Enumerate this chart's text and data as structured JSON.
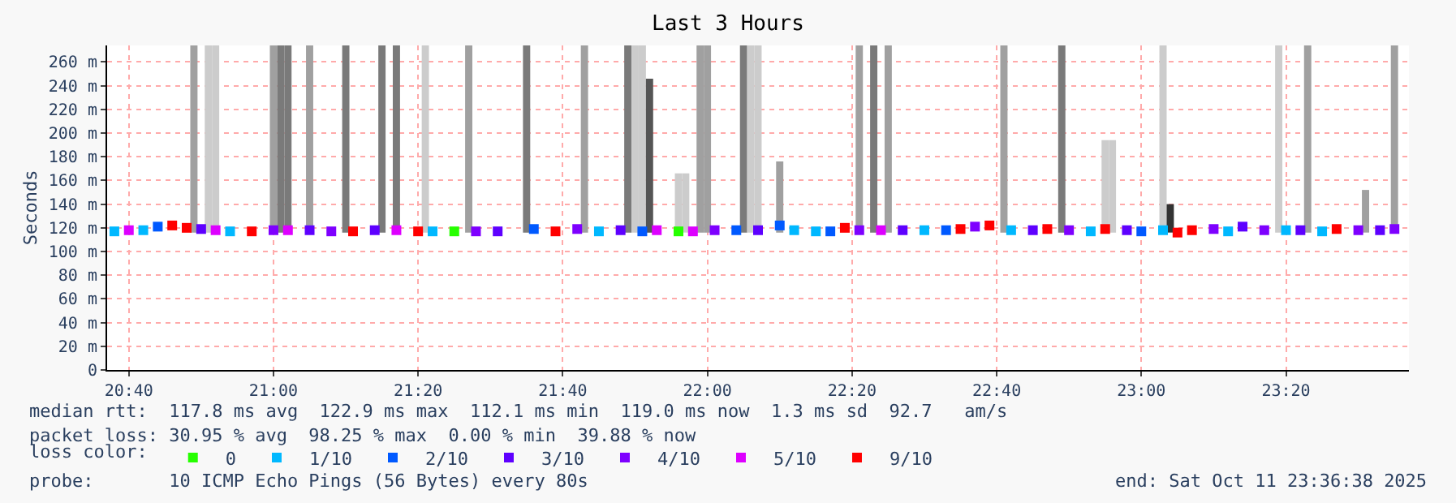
{
  "chart_data": {
    "type": "scatter",
    "title": "Last 3 Hours",
    "ylabel": "Seconds",
    "legend_title": "loss color:",
    "legend": "bottom",
    "grid": true,
    "marker": "square",
    "xlim": [
      "2025-10-11T20:37",
      "2025-10-11T23:37"
    ],
    "xticks": [
      {
        "value": "2025-10-11T20:40",
        "label": "20:40"
      },
      {
        "value": "2025-10-11T21:00",
        "label": "21:00"
      },
      {
        "value": "2025-10-11T21:20",
        "label": "21:20"
      },
      {
        "value": "2025-10-11T21:40",
        "label": "21:40"
      },
      {
        "value": "2025-10-11T22:00",
        "label": "22:00"
      },
      {
        "value": "2025-10-11T22:20",
        "label": "22:20"
      },
      {
        "value": "2025-10-11T22:40",
        "label": "22:40"
      },
      {
        "value": "2025-10-11T23:00",
        "label": "23:00"
      },
      {
        "value": "2025-10-11T23:20",
        "label": "23:20"
      }
    ],
    "ylim": [
      0,
      274
    ],
    "yticks": [
      0,
      {
        "value": 20,
        "label": "20 m"
      },
      {
        "value": 40,
        "label": "40 m"
      },
      {
        "value": 60,
        "label": "60 m"
      },
      {
        "value": 80,
        "label": "80 m"
      },
      {
        "value": 100,
        "label": "100 m"
      },
      {
        "value": 120,
        "label": "120 m"
      },
      {
        "value": 140,
        "label": "140 m"
      },
      {
        "value": 160,
        "label": "160 m"
      },
      {
        "value": 180,
        "label": "180 m"
      },
      {
        "value": 200,
        "label": "200 m"
      },
      {
        "value": 220,
        "label": "220 m"
      },
      {
        "value": 240,
        "label": "240 m"
      },
      {
        "value": 260,
        "label": "260 m"
      }
    ],
    "series": [
      {
        "type": "bar",
        "x": [
          "2025-10-11T20:49",
          "2025-10-11T20:51",
          "2025-10-11T20:52",
          "2025-10-11T21:00",
          "2025-10-11T21:01",
          "2025-10-11T21:02",
          "2025-10-11T21:05",
          "2025-10-11T21:10",
          "2025-10-11T21:15",
          "2025-10-11T21:17",
          "2025-10-11T21:21",
          "2025-10-11T21:27",
          "2025-10-11T21:35",
          "2025-10-11T21:43",
          "2025-10-11T21:49",
          "2025-10-11T21:50",
          "2025-10-11T21:51",
          "2025-10-11T21:52",
          "2025-10-11T21:56",
          "2025-10-11T21:57",
          "2025-10-11T21:59",
          "2025-10-11T22:00",
          "2025-10-11T22:05",
          "2025-10-11T22:06",
          "2025-10-11T22:07",
          "2025-10-11T22:10",
          "2025-10-11T22:21",
          "2025-10-11T22:23",
          "2025-10-11T22:25",
          "2025-10-11T22:41",
          "2025-10-11T22:49",
          "2025-10-11T22:55",
          "2025-10-11T22:56",
          "2025-10-11T23:03",
          "2025-10-11T23:04",
          "2025-10-11T23:19",
          "2025-10-11T23:23",
          "2025-10-11T23:31",
          "2025-10-11T23:35"
        ],
        "base": [
          116,
          116,
          116,
          116,
          116,
          116,
          116,
          116,
          116,
          116,
          116,
          116,
          116,
          116,
          116,
          116,
          116,
          116,
          116,
          116,
          116,
          116,
          116,
          116,
          116,
          116,
          116,
          116,
          116,
          116,
          116,
          116,
          116,
          116,
          116,
          116,
          116,
          116,
          116
        ],
        "values": [
          158,
          158,
          158,
          158,
          158,
          158,
          158,
          158,
          158,
          158,
          158,
          158,
          158,
          158,
          158,
          158,
          158,
          130,
          50,
          50,
          158,
          158,
          158,
          158,
          158,
          60,
          158,
          158,
          158,
          158,
          158,
          78,
          78,
          158,
          24,
          158,
          158,
          36,
          158
        ],
        "colors": [
          "#a0a0a0",
          "#cccccc",
          "#cccccc",
          "#a0a0a0",
          "#7a7a7a",
          "#7a7a7a",
          "#a0a0a0",
          "#7a7a7a",
          "#7a7a7a",
          "#7a7a7a",
          "#cccccc",
          "#a0a0a0",
          "#7a7a7a",
          "#a0a0a0",
          "#7a7a7a",
          "#cccccc",
          "#cccccc",
          "#555555",
          "#cccccc",
          "#cccccc",
          "#a0a0a0",
          "#a0a0a0",
          "#7a7a7a",
          "#cccccc",
          "#cccccc",
          "#a0a0a0",
          "#a0a0a0",
          "#7a7a7a",
          "#a0a0a0",
          "#a0a0a0",
          "#7a7a7a",
          "#cccccc",
          "#cccccc",
          "#cccccc",
          "#333333",
          "#cccccc",
          "#a0a0a0",
          "#a0a0a0",
          "#a0a0a0"
        ]
      },
      {
        "name": "0",
        "color": "#26ff00",
        "x": [
          "2025-10-11T21:25",
          "2025-10-11T21:56"
        ],
        "values": [
          117,
          117
        ]
      },
      {
        "name": "1/10",
        "color": "#00b8ff",
        "x": [
          "2025-10-11T20:38",
          "2025-10-11T20:42",
          "2025-10-11T20:54",
          "2025-10-11T21:22",
          "2025-10-11T21:45",
          "2025-10-11T22:12",
          "2025-10-11T22:15",
          "2025-10-11T22:30",
          "2025-10-11T22:42",
          "2025-10-11T22:53",
          "2025-10-11T23:03",
          "2025-10-11T23:12",
          "2025-10-11T23:20",
          "2025-10-11T23:25"
        ],
        "values": [
          117,
          118,
          117,
          117,
          117,
          118,
          117,
          118,
          118,
          117,
          118,
          117,
          118,
          117
        ]
      },
      {
        "name": "2/10",
        "color": "#0059ff",
        "x": [
          "2025-10-11T20:44",
          "2025-10-11T21:36",
          "2025-10-11T21:51",
          "2025-10-11T22:04",
          "2025-10-11T22:10",
          "2025-10-11T22:17",
          "2025-10-11T22:33",
          "2025-10-11T23:00"
        ],
        "values": [
          121,
          119,
          117,
          118,
          122,
          117,
          118,
          117
        ]
      },
      {
        "name": "3/10",
        "color": "#5e00ff",
        "x": [
          "2025-10-11T20:50",
          "2025-10-11T21:05",
          "2025-10-11T21:14",
          "2025-10-11T21:31",
          "2025-10-11T21:48",
          "2025-10-11T22:07",
          "2025-10-11T22:27",
          "2025-10-11T22:45",
          "2025-10-11T22:58",
          "2025-10-11T23:14",
          "2025-10-11T23:22",
          "2025-10-11T23:33"
        ],
        "values": [
          119,
          118,
          118,
          117,
          118,
          118,
          118,
          118,
          118,
          121,
          118,
          118
        ]
      },
      {
        "name": "4/10",
        "color": "#7e00ff",
        "x": [
          "2025-10-11T21:00",
          "2025-10-11T21:08",
          "2025-10-11T21:28",
          "2025-10-11T21:42",
          "2025-10-11T22:01",
          "2025-10-11T22:21",
          "2025-10-11T22:37",
          "2025-10-11T22:50",
          "2025-10-11T23:10",
          "2025-10-11T23:17",
          "2025-10-11T23:30",
          "2025-10-11T23:35"
        ],
        "values": [
          118,
          117,
          117,
          119,
          118,
          118,
          121,
          118,
          119,
          118,
          118,
          119
        ]
      },
      {
        "name": "5/10",
        "color": "#dd00ff",
        "x": [
          "2025-10-11T20:40",
          "2025-10-11T20:52",
          "2025-10-11T21:02",
          "2025-10-11T21:17",
          "2025-10-11T21:53",
          "2025-10-11T21:58",
          "2025-10-11T22:24"
        ],
        "values": [
          118,
          118,
          118,
          118,
          118,
          117,
          118
        ]
      },
      {
        "name": "9/10",
        "color": "#ff0000",
        "x": [
          "2025-10-11T20:46",
          "2025-10-11T20:48",
          "2025-10-11T20:57",
          "2025-10-11T21:11",
          "2025-10-11T21:20",
          "2025-10-11T21:39",
          "2025-10-11T22:19",
          "2025-10-11T22:35",
          "2025-10-11T22:39",
          "2025-10-11T22:47",
          "2025-10-11T22:55",
          "2025-10-11T23:05",
          "2025-10-11T23:07",
          "2025-10-11T23:27"
        ],
        "values": [
          122,
          120,
          117,
          117,
          117,
          117,
          120,
          119,
          122,
          119,
          119,
          116,
          118,
          119
        ]
      }
    ],
    "annotations": [
      "median rtt:  117.8 ms avg  122.9 ms max  112.1 ms min  119.0 ms now  1.3 ms sd  92.7   am/s",
      "packet loss: 30.95 % avg  98.25 % max  0.00 % min  39.88 % now",
      "probe:       10 ICMP Echo Pings (56 Bytes) every 80s",
      "end: Sat Oct 11 23:36:38 2025"
    ]
  }
}
